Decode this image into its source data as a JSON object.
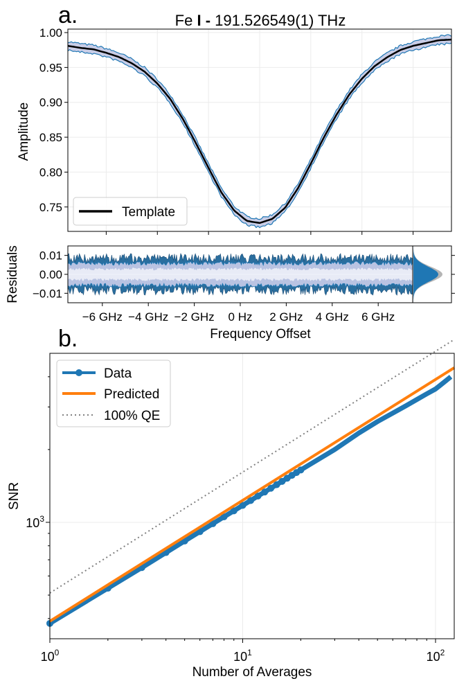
{
  "panels": {
    "a": {
      "letter": "a."
    },
    "b": {
      "letter": "b."
    }
  },
  "colors": {
    "data_blue": "#1f77b4",
    "band_light": "#c9cde6",
    "band_pale": "#e8ebf6",
    "predicted_orange": "#ff7f0e",
    "qe_gray": "#808080",
    "template_black": "#000000",
    "grid": "#ebebeb"
  },
  "chart_data": [
    {
      "id": "spectrum",
      "type": "line",
      "title_parts": [
        "Fe ",
        "I",
        " - ",
        "191.526549(1) THz"
      ],
      "xlabel": "Frequency Offset",
      "ylabel": "Amplitude",
      "x_unit": "GHz",
      "xlim": [
        -7.5,
        7.5
      ],
      "ylim": [
        0.715,
        1.005
      ],
      "yticks": [
        0.75,
        0.8,
        0.85,
        0.9,
        0.95,
        1.0
      ],
      "ytick_labels": [
        "0.75",
        "0.80",
        "0.85",
        "0.90",
        "0.95",
        "1.00"
      ],
      "grid": true,
      "legend": {
        "position": "lower left",
        "entries": [
          "Template"
        ]
      },
      "series": [
        {
          "name": "Template",
          "x": [
            -7.5,
            -7,
            -6.5,
            -6,
            -5.5,
            -5,
            -4.5,
            -4,
            -3.5,
            -3,
            -2.5,
            -2,
            -1.5,
            -1,
            -0.5,
            0,
            0.5,
            1,
            1.5,
            2,
            2.5,
            3,
            3.5,
            4,
            4.5,
            5,
            5.5,
            6,
            6.5,
            7,
            7.5
          ],
          "y": [
            0.981,
            0.978,
            0.976,
            0.971,
            0.965,
            0.956,
            0.944,
            0.927,
            0.905,
            0.876,
            0.842,
            0.806,
            0.771,
            0.745,
            0.73,
            0.727,
            0.733,
            0.749,
            0.777,
            0.812,
            0.849,
            0.882,
            0.911,
            0.934,
            0.952,
            0.965,
            0.975,
            0.981,
            0.985,
            0.989,
            0.99
          ]
        }
      ],
      "data_band_halfwidth": 0.006
    },
    {
      "id": "residuals",
      "type": "area",
      "ylabel": "Residuals",
      "xlabel": "Frequency Offset",
      "xlim": [
        -7.5,
        7.5
      ],
      "ylim": [
        -0.015,
        0.015
      ],
      "yticks": [
        -0.01,
        0.0,
        0.01
      ],
      "ytick_labels": [
        "−0.01",
        "0.00",
        "0.01"
      ],
      "xticks": [
        -6,
        -4,
        -2,
        0,
        2,
        4,
        6
      ],
      "xtick_labels": [
        "−6 GHz",
        "−4 GHz",
        "−2 GHz",
        "0 Hz",
        "2 GHz",
        "4 GHz",
        "6 GHz"
      ],
      "residual_band": {
        "inner": 0.003,
        "outer": 0.006,
        "extreme": 0.011
      },
      "histogram": {
        "distribution": "gaussian",
        "center": 0.0,
        "sigma": 0.004
      }
    },
    {
      "id": "snr",
      "type": "line",
      "xlabel": "Number of Averages",
      "ylabel": "SNR",
      "x_scale": "log",
      "y_scale": "log",
      "xlim": [
        1,
        125
      ],
      "ylim": [
        330,
        5000
      ],
      "xtick_labels": [
        {
          "base": "10",
          "exp": "0",
          "value": 1
        },
        {
          "base": "10",
          "exp": "1",
          "value": 10
        },
        {
          "base": "10",
          "exp": "2",
          "value": 100
        }
      ],
      "ytick_labels": [
        {
          "base": "10",
          "exp": "3",
          "value": 1000
        }
      ],
      "grid": true,
      "legend": {
        "position": "upper left",
        "entries": [
          "Data",
          "Predicted",
          "100% QE"
        ]
      },
      "series": [
        {
          "name": "Data",
          "style": "line-with-markers",
          "x": [
            1,
            2,
            3,
            4,
            5,
            6,
            7,
            8,
            9,
            10,
            11,
            12,
            13,
            14,
            15,
            16,
            17,
            18,
            19,
            20,
            30,
            40,
            50,
            60,
            70,
            80,
            90,
            100,
            110,
            120
          ],
          "y": [
            382,
            534,
            650,
            750,
            837,
            915,
            987,
            1054,
            1116,
            1175,
            1231,
            1285,
            1335,
            1384,
            1431,
            1477,
            1522,
            1565,
            1606,
            1646,
            2000,
            2340,
            2610,
            2830,
            3030,
            3220,
            3400,
            3560,
            3780,
            4000
          ]
        },
        {
          "name": "Predicted",
          "style": "line",
          "x": [
            1,
            125
          ],
          "y": [
            390,
            4360
          ]
        },
        {
          "name": "100% QE",
          "style": "dotted",
          "x": [
            1,
            125
          ],
          "y": [
            510,
            5700
          ]
        }
      ]
    }
  ]
}
